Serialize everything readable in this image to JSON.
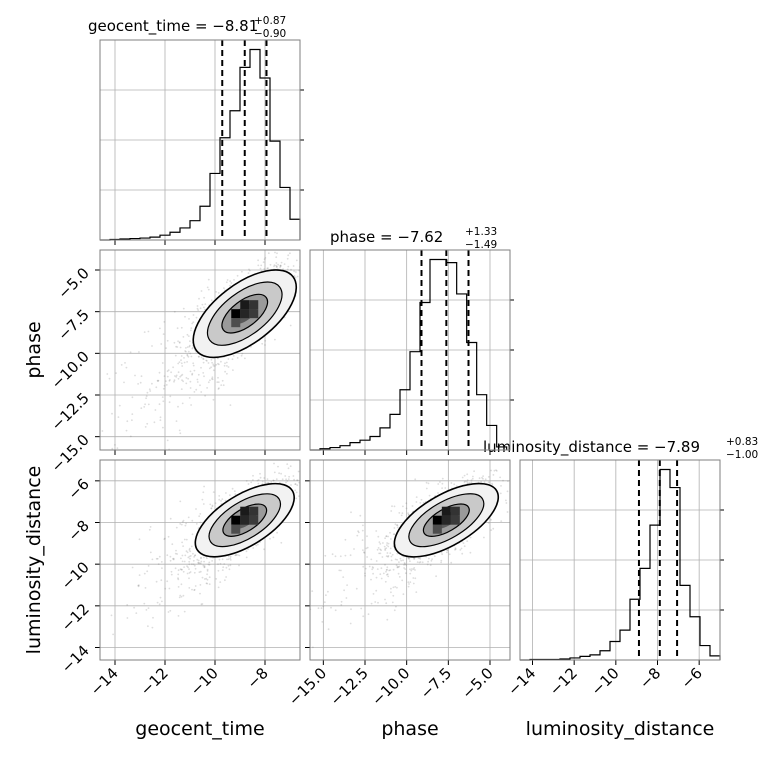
{
  "chart_data": {
    "type": "corner",
    "parameters": [
      "geocent_time",
      "phase",
      "luminosity_distance"
    ],
    "grid": true,
    "titles": [
      {
        "parameter": "geocent_time",
        "prefix": "geocent_time = ",
        "median": "−8.81",
        "plus": "+0.87",
        "minus": "−0.90"
      },
      {
        "parameter": "phase",
        "prefix": "phase = ",
        "median": "−7.62",
        "plus": "+1.33",
        "minus": "−1.49"
      },
      {
        "parameter": "luminosity_distance",
        "prefix": "luminosity_distance = ",
        "median": "−7.89",
        "plus": "+0.83",
        "minus": "−1.00"
      }
    ],
    "axis_labels": [
      "geocent_time",
      "phase",
      "luminosity_distance"
    ],
    "ranges": [
      [
        -14.6,
        -6.6
      ],
      [
        -15.8,
        -3.8
      ],
      [
        -14.6,
        -5.0
      ]
    ],
    "ticks": [
      {
        "values": [
          -14,
          -12,
          -10,
          -8
        ],
        "labels": [
          "−14",
          "−12",
          "−10",
          "−8"
        ]
      },
      {
        "values": [
          -15.0,
          -12.5,
          -10.0,
          -7.5,
          -5.0
        ],
        "labels": [
          "−15.0",
          "−12.5",
          "−10.0",
          "−7.5",
          "−5.0"
        ]
      },
      {
        "values": [
          -14,
          -12,
          -10,
          -8,
          -6
        ],
        "labels": [
          "−14",
          "−12",
          "−10",
          "−8",
          "−6"
        ]
      }
    ],
    "quantiles": [
      [
        -9.71,
        -8.81,
        -7.94
      ],
      [
        -9.11,
        -7.62,
        -6.29
      ],
      [
        -8.89,
        -7.89,
        -7.06
      ]
    ],
    "histograms": [
      {
        "parameter": "geocent_time",
        "bin_edges": [
          -14.6,
          -14.2,
          -13.8,
          -13.4,
          -13.0,
          -12.6,
          -12.2,
          -11.8,
          -11.4,
          -11.0,
          -10.6,
          -10.2,
          -9.8,
          -9.4,
          -9.0,
          -8.6,
          -8.2,
          -7.8,
          -7.4,
          -7.0,
          -6.6
        ],
        "counts": [
          0,
          1,
          2,
          3,
          4,
          6,
          10,
          16,
          25,
          40,
          70,
          138,
          212,
          268,
          358,
          395,
          336,
          205,
          109,
          43
        ]
      },
      {
        "parameter": "phase",
        "bin_edges": [
          -15.8,
          -15.2,
          -14.6,
          -14.0,
          -13.4,
          -12.8,
          -12.2,
          -11.6,
          -11.0,
          -10.4,
          -9.8,
          -9.2,
          -8.6,
          -7.6,
          -7.0,
          -6.4,
          -5.8,
          -5.2,
          -4.6,
          -4.0
        ],
        "counts": [
          0,
          2,
          4,
          7,
          12,
          16,
          22,
          36,
          58,
          98,
          160,
          240,
          310,
          305,
          254,
          175,
          90,
          40,
          5
        ]
      },
      {
        "parameter": "luminosity_distance",
        "bin_edges": [
          -14.6,
          -14.12,
          -13.64,
          -13.16,
          -12.68,
          -12.2,
          -11.72,
          -11.24,
          -10.76,
          -10.28,
          -9.8,
          -9.32,
          -8.84,
          -8.36,
          -7.88,
          -7.4,
          -6.92,
          -6.44,
          -5.96,
          -5.48,
          -5.0
        ],
        "counts": [
          0,
          1,
          1,
          1,
          2,
          4,
          7,
          10,
          18,
          36,
          58,
          118,
          178,
          262,
          370,
          335,
          145,
          84,
          28,
          8
        ]
      }
    ]
  }
}
